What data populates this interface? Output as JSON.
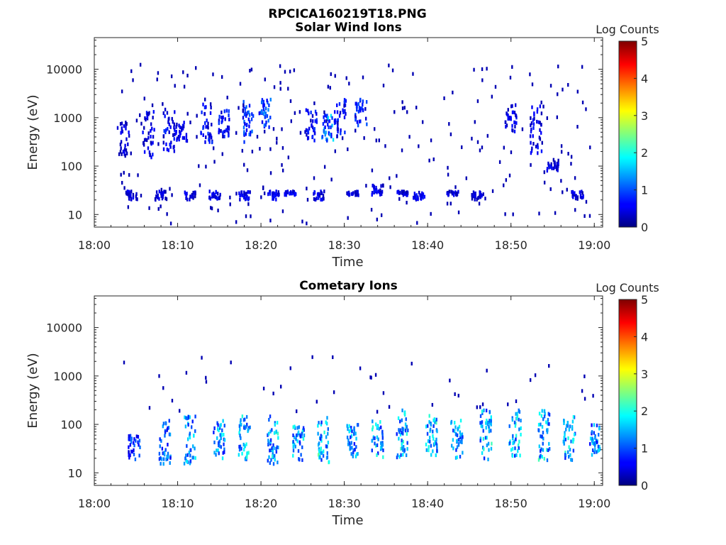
{
  "figure": {
    "title": "RPCICA160219T18.PNG"
  },
  "chart_data": [
    {
      "type": "heatmap",
      "title": "Solar Wind Ions",
      "xlabel": "Time",
      "ylabel": "Energy (eV)",
      "x_ticks": [
        "18:00",
        "18:10",
        "18:20",
        "18:30",
        "18:40",
        "18:50",
        "19:00"
      ],
      "x_range": [
        "18:00",
        "19:01"
      ],
      "y_scale": "log",
      "y_ticks": [
        10,
        100,
        1000,
        10000
      ],
      "y_tick_labels": [
        "10",
        "100",
        "1000",
        "10000"
      ],
      "y_range": [
        5.5,
        45000
      ],
      "colorbar": {
        "label": "Log Counts",
        "range": [
          0,
          5
        ],
        "ticks": [
          "0",
          "1",
          "2",
          "3",
          "4",
          "5"
        ],
        "colormap": "jet"
      },
      "clusters": [
        {
          "t": "18:03.5",
          "e": [
            170,
            800
          ],
          "level": 0.4
        },
        {
          "t": "18:04.5",
          "e": [
            20,
            30
          ],
          "level": 0.4
        },
        {
          "t": "18:06.5",
          "e": [
            150,
            1500
          ],
          "level": 0.5
        },
        {
          "t": "18:08",
          "e": [
            20,
            30
          ],
          "level": 0.4
        },
        {
          "t": "18:09",
          "e": [
            200,
            1500
          ],
          "level": 0.6
        },
        {
          "t": "18:10.5",
          "e": [
            300,
            800
          ],
          "level": 0.5
        },
        {
          "t": "18:11.5",
          "e": [
            20,
            30
          ],
          "level": 0.4
        },
        {
          "t": "18:13.5",
          "e": [
            300,
            2000
          ],
          "level": 0.6
        },
        {
          "t": "18:14.5",
          "e": [
            20,
            30
          ],
          "level": 0.5
        },
        {
          "t": "18:15.5",
          "e": [
            400,
            1500
          ],
          "level": 0.6
        },
        {
          "t": "18:18.5",
          "e": [
            300,
            2500
          ],
          "level": 0.8
        },
        {
          "t": "18:18",
          "e": [
            20,
            30
          ],
          "level": 0.5
        },
        {
          "t": "18:20.5",
          "e": [
            600,
            2500
          ],
          "level": 0.9
        },
        {
          "t": "18:21.5",
          "e": [
            20,
            30
          ],
          "level": 0.5
        },
        {
          "t": "18:23.5",
          "e": [
            25,
            30
          ],
          "level": 0.5
        },
        {
          "t": "18:26",
          "e": [
            300,
            1500
          ],
          "level": 0.6
        },
        {
          "t": "18:27",
          "e": [
            20,
            30
          ],
          "level": 0.5
        },
        {
          "t": "18:28",
          "e": [
            300,
            1200
          ],
          "level": 1.2
        },
        {
          "t": "18:29.5",
          "e": [
            400,
            2500
          ],
          "level": 0.6
        },
        {
          "t": "18:31",
          "e": [
            25,
            30
          ],
          "level": 0.5
        },
        {
          "t": "18:32",
          "e": [
            600,
            2500
          ],
          "level": 0.7
        },
        {
          "t": "18:34",
          "e": [
            25,
            40
          ],
          "level": 0.5
        },
        {
          "t": "18:37",
          "e": [
            25,
            30
          ],
          "level": 0.4
        },
        {
          "t": "18:39",
          "e": [
            20,
            30
          ],
          "level": 0.5
        },
        {
          "t": "18:43",
          "e": [
            25,
            30
          ],
          "level": 0.4
        },
        {
          "t": "18:46",
          "e": [
            20,
            30
          ],
          "level": 0.4
        },
        {
          "t": "18:50",
          "e": [
            500,
            2000
          ],
          "level": 0.5
        },
        {
          "t": "18:53",
          "e": [
            150,
            2000
          ],
          "level": 0.5
        },
        {
          "t": "18:55",
          "e": [
            80,
            120
          ],
          "level": 0.5
        },
        {
          "t": "18:58",
          "e": [
            20,
            30
          ],
          "level": 0.4
        }
      ]
    },
    {
      "type": "heatmap",
      "title": "Cometary Ions",
      "xlabel": "Time",
      "ylabel": "Energy (eV)",
      "x_ticks": [
        "18:00",
        "18:10",
        "18:20",
        "18:30",
        "18:40",
        "18:50",
        "19:00"
      ],
      "x_range": [
        "18:00",
        "19:01"
      ],
      "y_scale": "log",
      "y_ticks": [
        10,
        100,
        1000,
        10000
      ],
      "y_tick_labels": [
        "10",
        "100",
        "1000",
        "10000"
      ],
      "y_range": [
        5.5,
        45000
      ],
      "colorbar": {
        "label": "Log Counts",
        "range": [
          0,
          5
        ],
        "ticks": [
          "0",
          "1",
          "2",
          "3",
          "4",
          "5"
        ],
        "colormap": "jet"
      },
      "clusters": [
        {
          "t": "18:04.8",
          "e": [
            18,
            60
          ],
          "level": 0.8
        },
        {
          "t": "18:08.5",
          "e": [
            15,
            120
          ],
          "level": 1.0
        },
        {
          "t": "18:11.5",
          "e": [
            15,
            150
          ],
          "level": 1.3
        },
        {
          "t": "18:15",
          "e": [
            18,
            120
          ],
          "level": 1.3
        },
        {
          "t": "18:18",
          "e": [
            18,
            150
          ],
          "level": 1.4
        },
        {
          "t": "18:21.5",
          "e": [
            15,
            150
          ],
          "level": 1.5
        },
        {
          "t": "18:24.5",
          "e": [
            18,
            100
          ],
          "level": 1.4
        },
        {
          "t": "18:27.5",
          "e": [
            15,
            150
          ],
          "level": 1.6
        },
        {
          "t": "18:31",
          "e": [
            20,
            100
          ],
          "level": 1.3
        },
        {
          "t": "18:34",
          "e": [
            20,
            120
          ],
          "level": 1.4
        },
        {
          "t": "18:37",
          "e": [
            20,
            200
          ],
          "level": 1.5
        },
        {
          "t": "18:40.5",
          "e": [
            18,
            150
          ],
          "level": 1.5
        },
        {
          "t": "18:43.5",
          "e": [
            20,
            120
          ],
          "level": 1.3
        },
        {
          "t": "18:47",
          "e": [
            18,
            200
          ],
          "level": 1.5
        },
        {
          "t": "18:50.5",
          "e": [
            20,
            200
          ],
          "level": 1.4
        },
        {
          "t": "18:54",
          "e": [
            18,
            200
          ],
          "level": 1.5
        },
        {
          "t": "18:57",
          "e": [
            18,
            150
          ],
          "level": 1.4
        },
        {
          "t": "19:00",
          "e": [
            20,
            100
          ],
          "level": 1.2
        }
      ]
    }
  ]
}
